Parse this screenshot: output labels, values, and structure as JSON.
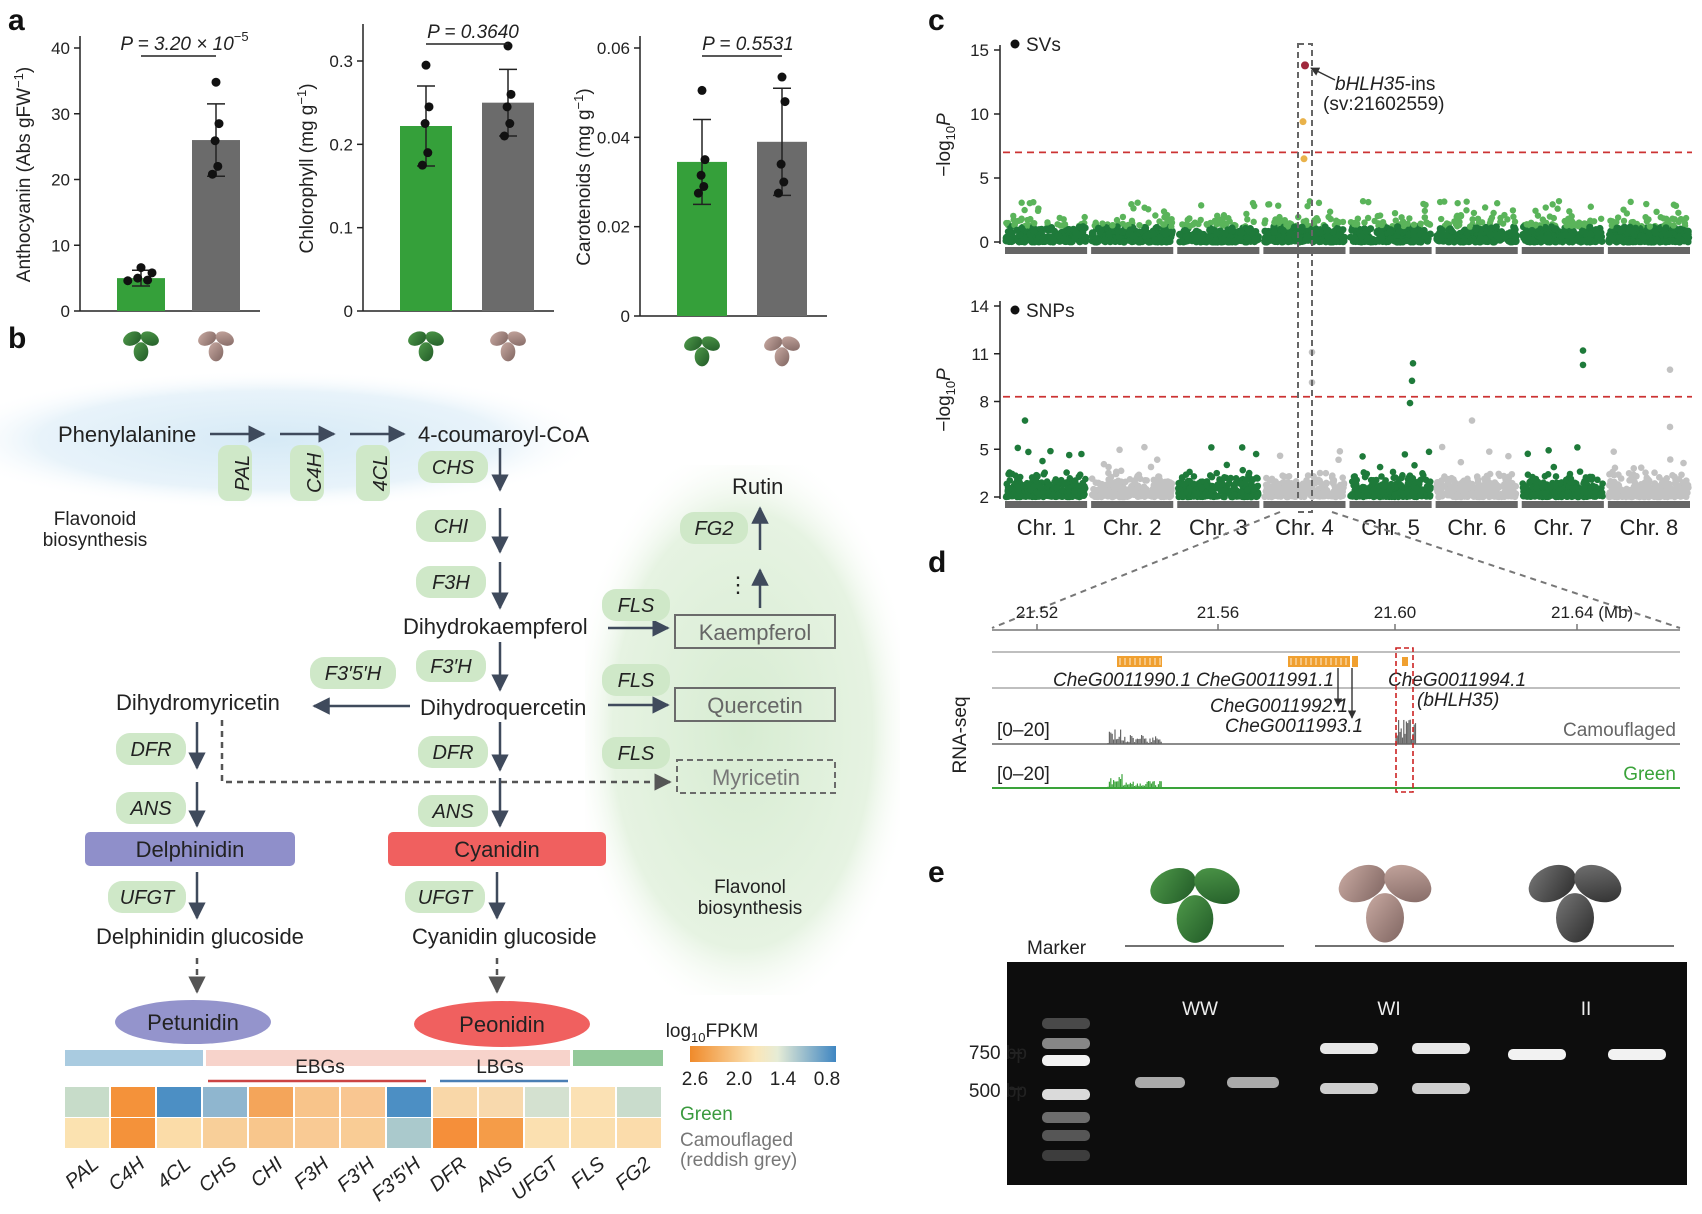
{
  "panels": {
    "a": "a",
    "b": "b",
    "c": "c",
    "d": "d",
    "e": "e"
  },
  "panel_a": {
    "colors": {
      "green": "#35a03a",
      "grey": "#6b6b6b"
    },
    "charts": [
      {
        "id": "anthocyanin",
        "p_text": "P = 3.20 × 10",
        "p_exp": "−5",
        "ylabel_main": "Anthocyanin (Abs gFW",
        "ylabel_sup": "−1",
        "ylabel_end": ")",
        "ylim": [
          0,
          40
        ],
        "ticks": [
          "0",
          "10",
          "20",
          "30",
          "40"
        ],
        "tick_vals": [
          0,
          10,
          20,
          30,
          40
        ],
        "bars": [
          {
            "value": 5.0,
            "err": 1.2,
            "points": [
              4.6,
              4.7,
              5.0,
              5.8,
              6.6
            ]
          },
          {
            "value": 26.0,
            "err": 5.5,
            "points": [
              20.8,
              22.0,
              25.9,
              28.5,
              34.8
            ]
          }
        ]
      },
      {
        "id": "chlorophyll",
        "p_text": "P = 0.3640",
        "p_exp": "",
        "ylabel_main": "Chlorophyll (mg g",
        "ylabel_sup": "−1",
        "ylabel_end": ")",
        "ylim": [
          0,
          0.33
        ],
        "ticks": [
          "0",
          "0.1",
          "0.2",
          "0.3"
        ],
        "tick_vals": [
          0,
          0.1,
          0.2,
          0.3
        ],
        "bars": [
          {
            "value": 0.222,
            "err": 0.048,
            "points": [
              0.175,
              0.19,
              0.225,
              0.245,
              0.295
            ]
          },
          {
            "value": 0.25,
            "err": 0.04,
            "points": [
              0.21,
              0.225,
              0.245,
              0.26,
              0.318
            ]
          }
        ]
      },
      {
        "id": "carotenoids",
        "p_text": "P = 0.5531",
        "p_exp": "",
        "ylabel_main": "Carotenoids (mg g",
        "ylabel_sup": "−1",
        "ylabel_end": ")",
        "ylim": [
          0,
          0.06
        ],
        "ticks": [
          "0",
          "0.02",
          "0.04",
          "0.06"
        ],
        "tick_vals": [
          0,
          0.02,
          0.04,
          0.06
        ],
        "bars": [
          {
            "value": 0.0345,
            "err": 0.0095,
            "points": [
              0.0275,
              0.029,
              0.0315,
              0.035,
              0.0505
            ]
          },
          {
            "value": 0.039,
            "err": 0.012,
            "points": [
              0.0275,
              0.03,
              0.034,
              0.048,
              0.0535
            ]
          }
        ]
      }
    ]
  },
  "panel_b": {
    "compounds": {
      "phe": "Phenylalanine",
      "coum": "4-coumaroyl-CoA",
      "dhk": "Dihydrokaempferol",
      "dhq": "Dihydroquercetin",
      "dhm": "Dihydromyricetin",
      "rutin": "Rutin",
      "kae": "Kaempferol",
      "que": "Quercetin",
      "myr": "Myricetin",
      "del": "Delphinidin",
      "cya": "Cyanidin",
      "delglc": "Delphinidin glucoside",
      "cyaglc": "Cyanidin glucoside",
      "pet": "Petunidin",
      "peo": "Peonidin"
    },
    "enzymes": {
      "pal": "PAL",
      "c4h": "C4H",
      "fourcl": "4CL",
      "chs": "CHS",
      "chi": "CHI",
      "f3h": "F3H",
      "f3ph": "F3′H",
      "f35h": "F3′5′H",
      "fls1": "FLS",
      "fls2": "FLS",
      "fls3": "FLS",
      "fg2": "FG2",
      "dfr1": "DFR",
      "dfr2": "DFR",
      "ans1": "ANS",
      "ans2": "ANS",
      "ufgt1": "UFGT",
      "ufgt2": "UFGT"
    },
    "region_labels": {
      "flavonoid_1": "Flavonoid",
      "flavonoid_2": "biosynthesis",
      "flavonol_1": "Flavonol",
      "flavonol_2": "biosynthesis"
    },
    "dots": "⋮",
    "heatmap": {
      "title_main": "log",
      "title_sub": "10",
      "title_end": "FPKM",
      "scale_ticks": [
        "2.6",
        "2.0",
        "1.4",
        "0.8"
      ],
      "group_labels": {
        "ebg": "EBGs",
        "lbg": "LBGs"
      },
      "row_labels": {
        "green": "Green",
        "camo1": "Camouflaged",
        "camo2": "(reddish grey)"
      },
      "genes": [
        "PAL",
        "C4H",
        "4CL",
        "CHS",
        "CHI",
        "F3H",
        "F3′H",
        "F3′5′H",
        "DFR",
        "ANS",
        "UFGT",
        "FLS",
        "FG2"
      ],
      "green_row": [
        "#c7dcc9",
        "#f4923a",
        "#4c8fc4",
        "#8fb6cf",
        "#f4a55a",
        "#f8c48a",
        "#f9c691",
        "#4c8fc4",
        "#f9d7a8",
        "#f8d9ad",
        "#d4e1d0",
        "#fbe1b4",
        "#c9dccc"
      ],
      "camo_row": [
        "#fbe2b0",
        "#f4923a",
        "#fbdca8",
        "#f8cf99",
        "#f8c68c",
        "#f9ca94",
        "#f9cc95",
        "#aac9cc",
        "#f58f3a",
        "#f59c48",
        "#fbe0b0",
        "#fbdfae",
        "#fbdcab"
      ],
      "colors": {
        "green_label": "#3a9a3e",
        "camo_label": "#777777"
      }
    }
  },
  "panel_c": {
    "sv_label": "SVs",
    "snp_label": "SNPs",
    "ylabel_main": "−log",
    "ylabel_sub": "10",
    "ylabel_end": "P",
    "sv_ticks": [
      "0",
      "5",
      "10",
      "15"
    ],
    "sv_tick_vals": [
      0,
      5,
      10,
      15
    ],
    "snp_ticks": [
      "2",
      "5",
      "8",
      "11",
      "14"
    ],
    "snp_tick_vals": [
      2,
      5,
      8,
      11,
      14
    ],
    "sv_threshold": 7.0,
    "snp_threshold": 8.3,
    "hit_label_gene": "bHLH35",
    "hit_label_suffix": "-ins",
    "hit_label_id": "(sv:21602559)",
    "hit_value": 13.8,
    "chromosomes": [
      "Chr. 1",
      "Chr. 2",
      "Chr. 3",
      "Chr. 4",
      "Chr. 5",
      "Chr. 6",
      "Chr. 7",
      "Chr. 8"
    ],
    "colors": {
      "dark": "#1e7a3a",
      "light": "#5ab45a",
      "grey": "#c2c2c2",
      "threshold": "#cc3333",
      "hit": "#a0283c",
      "orange": "#e9b24a"
    }
  },
  "panel_d": {
    "ticks": [
      "21.52",
      "21.56",
      "21.60",
      "21.64 (Mb)"
    ],
    "genes": {
      "g1": "CheG0011990.1",
      "g2": "CheG0011991.1",
      "g3": "CheG0011992.1",
      "g4": "CheG0011993.1",
      "g5": "CheG0011994.1",
      "g5b": "(bHLH35)"
    },
    "ylabel": "RNA-seq",
    "range1": "[0–20]",
    "range2": "[0–20]",
    "track1": "Camouflaged",
    "track2": "Green",
    "colors": {
      "gene": "#f0a030",
      "camo": "#666666",
      "green": "#3aa33a",
      "box": "#cc2222"
    }
  },
  "panel_e": {
    "marker": "Marker",
    "genotypes": [
      "WW",
      "WI",
      "II"
    ],
    "bp_labels": [
      "750 bp",
      "500 bp"
    ]
  }
}
